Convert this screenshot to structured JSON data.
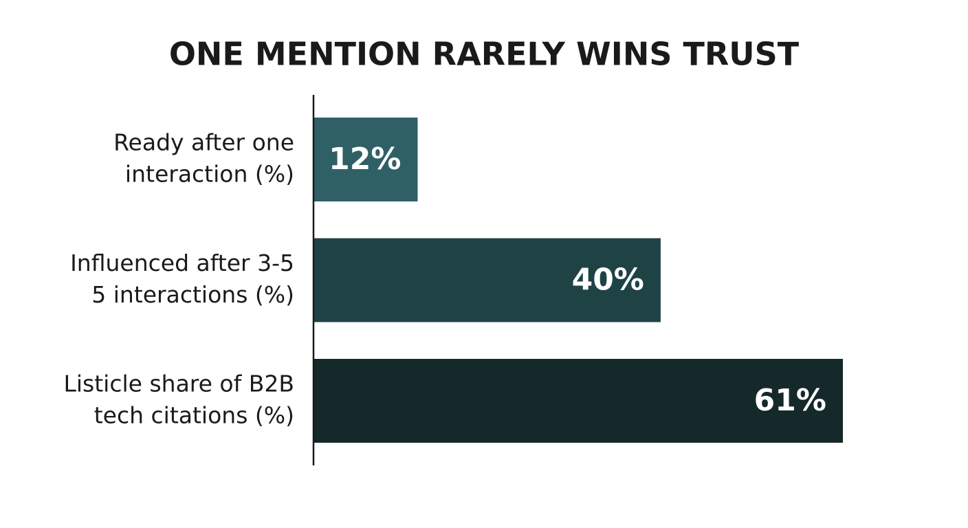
{
  "chart_data": {
    "type": "bar",
    "orientation": "horizontal",
    "title": "ONE MENTION RARELY WINS TRUST",
    "categories": [
      [
        "Ready after one",
        "interaction (%)"
      ],
      [
        "Influenced after 3-5",
        "5 interactions (%)"
      ],
      [
        "Listicle share of B2B",
        "tech citations (%)"
      ]
    ],
    "values": [
      12,
      40,
      61
    ],
    "value_labels": [
      "12%",
      "40%",
      "61%"
    ],
    "colors": [
      "#2f6066",
      "#1f4245",
      "#15282a"
    ]
  }
}
